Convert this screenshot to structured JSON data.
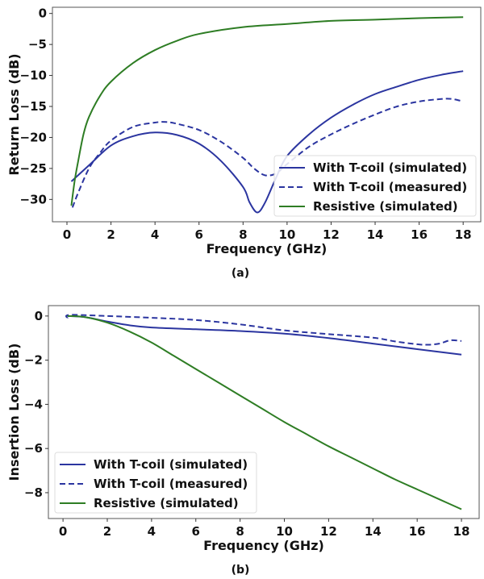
{
  "chart_data": [
    {
      "type": "line",
      "caption": "(a)",
      "xlabel": "Frequency (GHz)",
      "ylabel": "Return Loss (dB)",
      "xlim": [
        -0.66,
        18.8
      ],
      "ylim": [
        -33.6,
        1.0
      ],
      "xticks": [
        0,
        2,
        4,
        6,
        8,
        10,
        12,
        14,
        16,
        18
      ],
      "yticks": [
        0,
        -5,
        -10,
        -15,
        -20,
        -25,
        -30
      ],
      "ytick_labels": [
        "0",
        "−5",
        "−10",
        "−15",
        "−20",
        "−25",
        "−30"
      ],
      "grid": false,
      "legend_position": "lower-right",
      "series": [
        {
          "name": "With T-coil (simulated)",
          "color": "#2b35a0",
          "style": "solid",
          "x": [
            0.2,
            1,
            2,
            3,
            4,
            5,
            6,
            7,
            8,
            8.3,
            8.65,
            9,
            9.5,
            10,
            11,
            12,
            13,
            14,
            15,
            16,
            17,
            18
          ],
          "y": [
            -27.1,
            -24.5,
            -21.3,
            -19.8,
            -19.2,
            -19.6,
            -21,
            -23.8,
            -28,
            -30.5,
            -32.1,
            -30.5,
            -26.5,
            -23,
            -19.5,
            -16.8,
            -14.7,
            -13,
            -11.8,
            -10.7,
            -9.9,
            -9.3
          ]
        },
        {
          "name": "With T-coil (measured)",
          "color": "#2b35a0",
          "style": "dashed",
          "x": [
            0.25,
            0.5,
            1,
            1.5,
            2,
            3,
            4,
            4.5,
            5,
            6,
            7,
            8,
            8.5,
            9,
            9.5,
            10,
            11,
            12,
            13,
            14,
            15,
            16,
            17,
            17.5,
            18
          ],
          "y": [
            -31.3,
            -29,
            -25,
            -22.5,
            -20.5,
            -18.3,
            -17.6,
            -17.5,
            -17.8,
            -18.8,
            -20.7,
            -23.3,
            -25,
            -26.1,
            -25.8,
            -24.3,
            -21.5,
            -19.5,
            -17.8,
            -16.3,
            -15,
            -14.2,
            -13.8,
            -13.8,
            -14.2
          ]
        },
        {
          "name": "Resistive (simulated)",
          "color": "#2e7d24",
          "style": "solid",
          "x": [
            0.2,
            0.35,
            0.5,
            0.75,
            1,
            1.5,
            2,
            3,
            4,
            5,
            6,
            8,
            10,
            12,
            14,
            16,
            18
          ],
          "y": [
            -31,
            -27,
            -24,
            -19.5,
            -16.7,
            -13.3,
            -11,
            -8,
            -5.9,
            -4.4,
            -3.3,
            -2.2,
            -1.7,
            -1.2,
            -1.0,
            -0.75,
            -0.6
          ]
        }
      ]
    },
    {
      "type": "line",
      "caption": "(b)",
      "xlabel": "Frequency (GHz)",
      "ylabel": "Insertion Loss (dB)",
      "xlim": [
        -0.66,
        18.8
      ],
      "ylim": [
        -9.17,
        0.47
      ],
      "xticks": [
        0,
        2,
        4,
        6,
        8,
        10,
        12,
        14,
        16,
        18
      ],
      "yticks": [
        0,
        -2,
        -4,
        -6,
        -8
      ],
      "ytick_labels": [
        "0",
        "−2",
        "−4",
        "−6",
        "−8"
      ],
      "grid": false,
      "legend_position": "lower-left",
      "series": [
        {
          "name": "With T-coil (simulated)",
          "color": "#2b35a0",
          "style": "solid",
          "x": [
            0.2,
            1,
            2,
            3,
            4,
            6,
            8,
            10,
            12,
            14,
            16,
            18
          ],
          "y": [
            0,
            -0.05,
            -0.25,
            -0.42,
            -0.52,
            -0.6,
            -0.68,
            -0.8,
            -1.0,
            -1.25,
            -1.5,
            -1.75
          ]
        },
        {
          "name": "With T-coil (measured)",
          "color": "#2b35a0",
          "style": "dashed",
          "x": [
            0.2,
            0.3,
            2,
            4,
            6,
            8,
            10,
            12,
            14,
            15,
            16,
            16.5,
            17,
            17.5,
            18
          ],
          "y": [
            -0.1,
            0.05,
            0,
            -0.08,
            -0.18,
            -0.38,
            -0.65,
            -0.82,
            -0.98,
            -1.15,
            -1.28,
            -1.3,
            -1.25,
            -1.1,
            -1.13
          ]
        },
        {
          "name": "Resistive (simulated)",
          "color": "#2e7d24",
          "style": "solid",
          "x": [
            0.2,
            1,
            2,
            3,
            4,
            5,
            6,
            7,
            8,
            9,
            10,
            11,
            12,
            13,
            14,
            15,
            16,
            17,
            18
          ],
          "y": [
            0,
            -0.05,
            -0.3,
            -0.7,
            -1.2,
            -1.8,
            -2.4,
            -3.0,
            -3.6,
            -4.2,
            -4.8,
            -5.35,
            -5.9,
            -6.4,
            -6.9,
            -7.4,
            -7.85,
            -8.3,
            -8.75
          ]
        }
      ]
    }
  ]
}
